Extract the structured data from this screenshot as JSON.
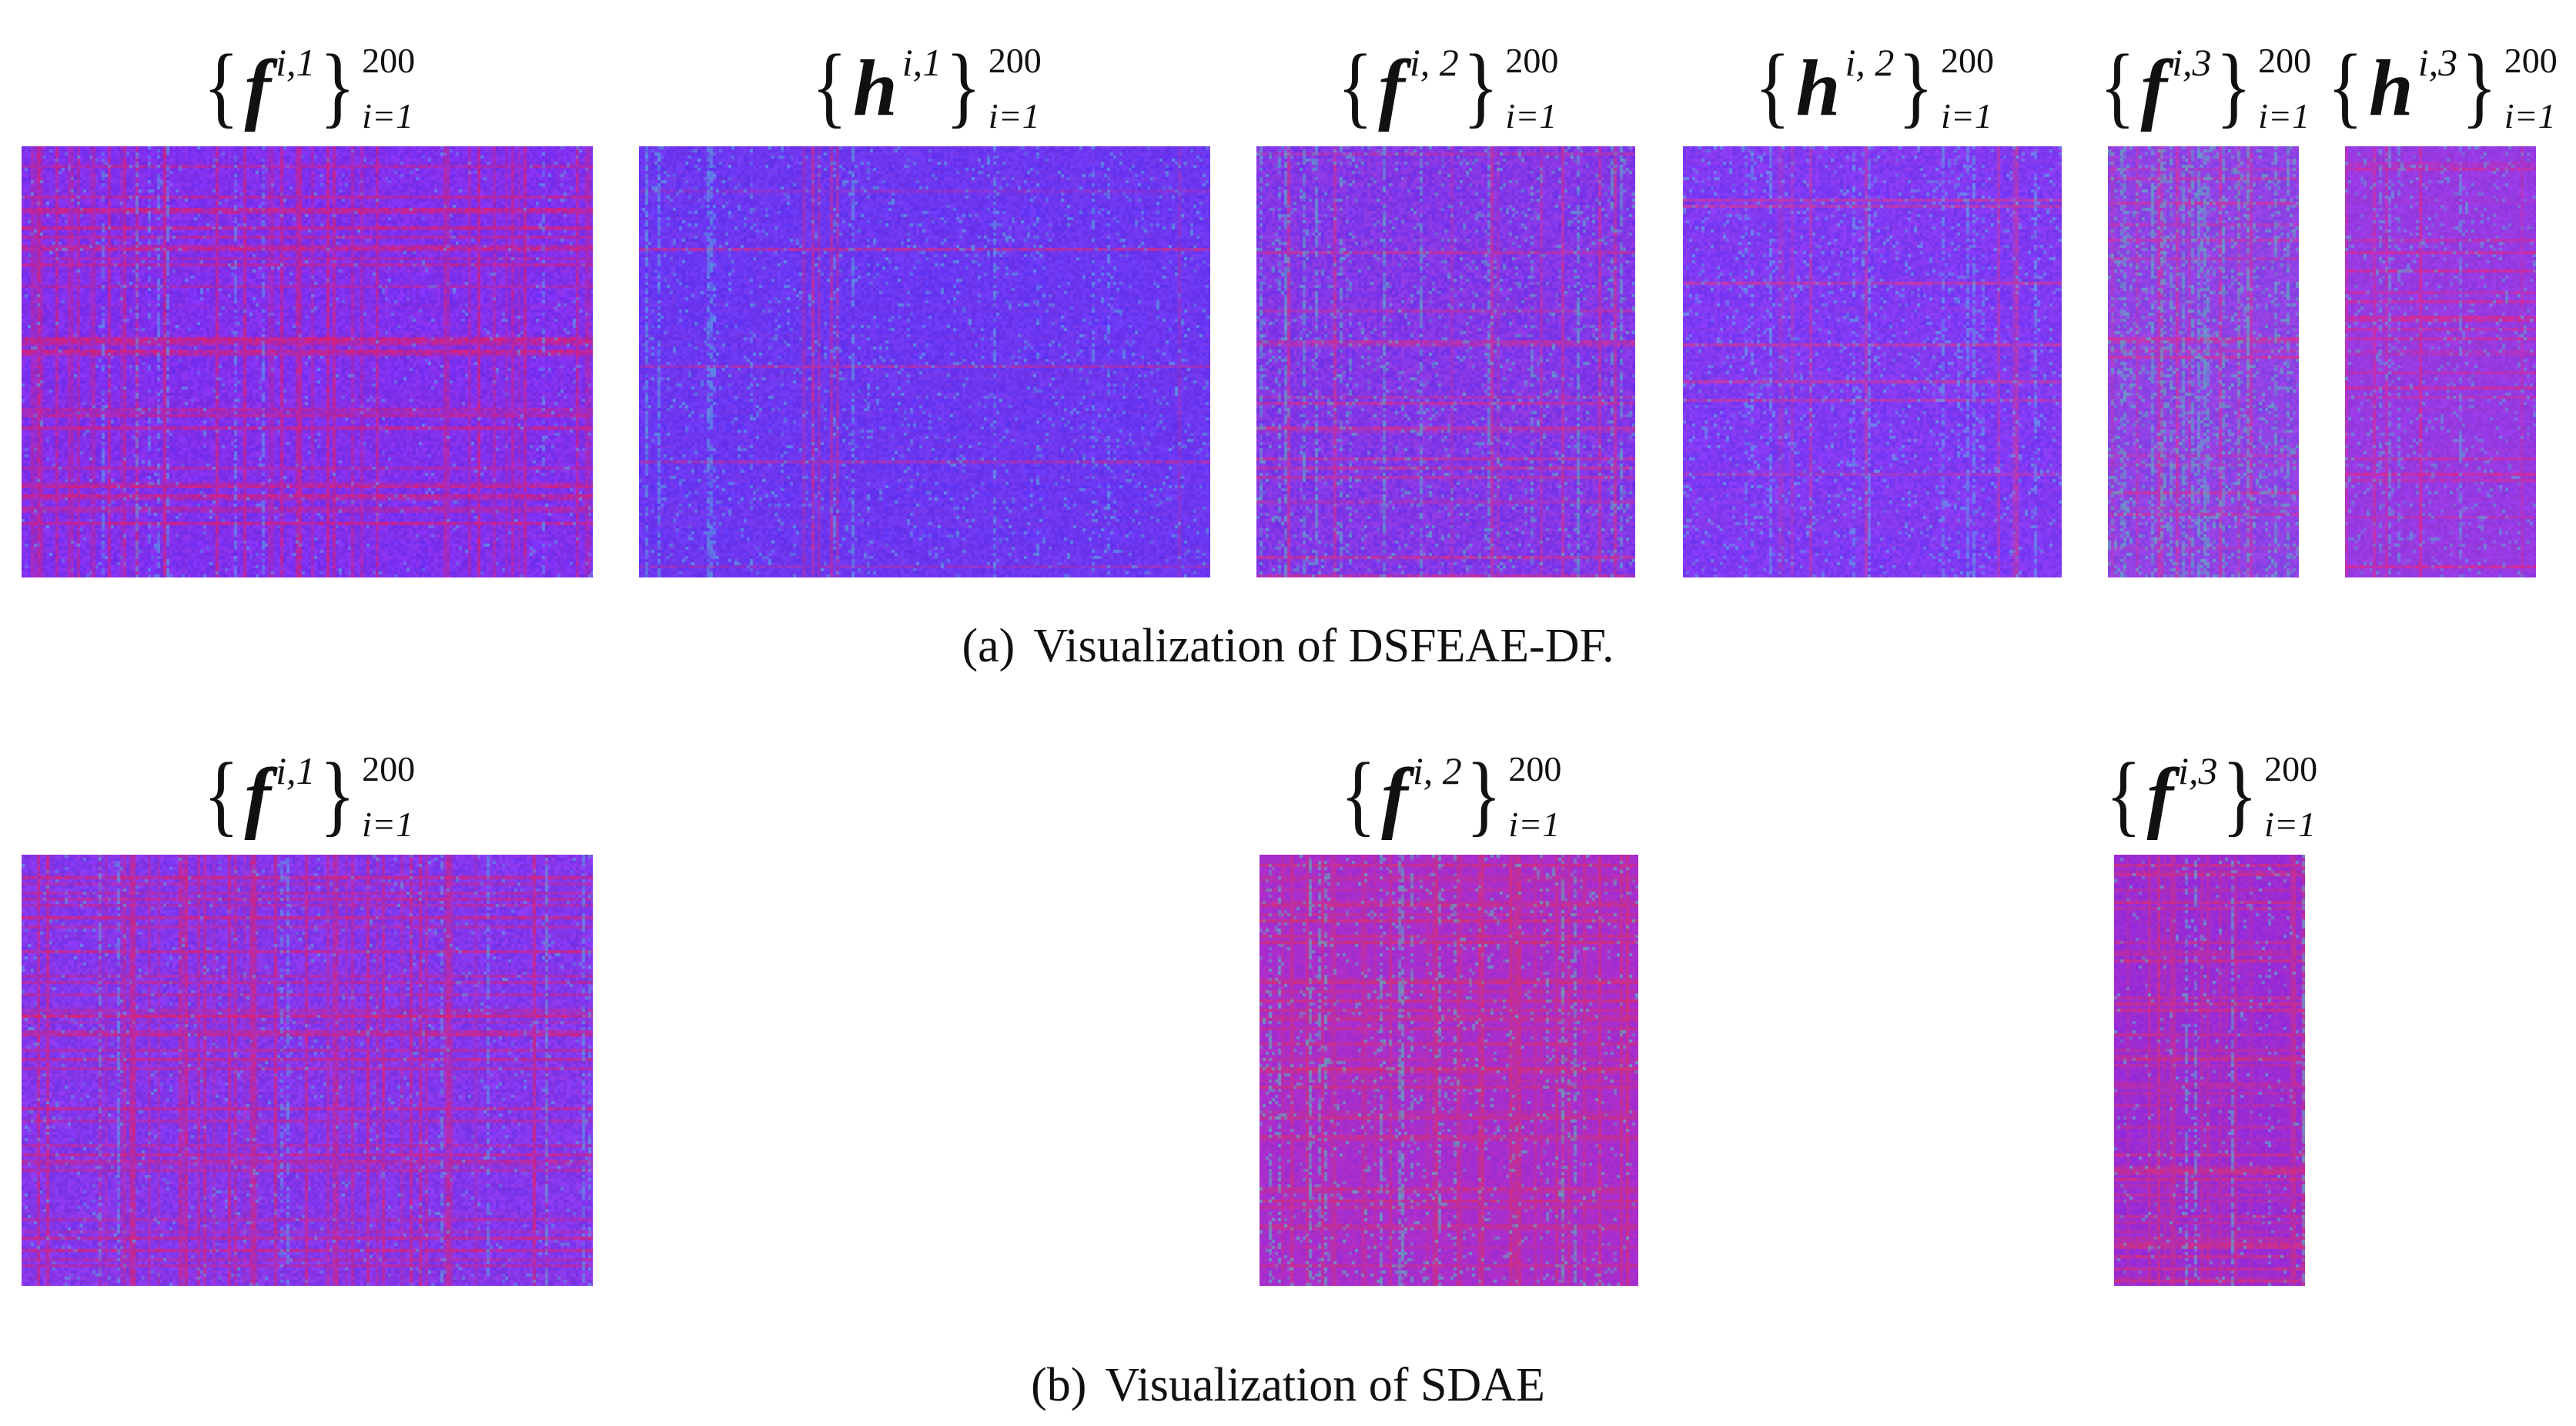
{
  "panel_a": {
    "caption_tag": "(a)",
    "caption_text": "Visualization of DSFEAE-DF.",
    "figures": [
      {
        "var": "f",
        "sup": "i,1",
        "upper": "200",
        "lower": "i=1",
        "colors": {
          "base": "#6a2cf0",
          "alt": "#8a38ff",
          "stripe": "#e0206e",
          "light": "#5aa0e8"
        },
        "stripe_density": 0.2,
        "light_density": 0.05
      },
      {
        "var": "h",
        "sup": "i,1",
        "upper": "200",
        "lower": "i=1",
        "colors": {
          "base": "#5a30f2",
          "alt": "#7040ff",
          "stripe": "#d02c8c",
          "light": "#58a8e0"
        },
        "stripe_density": 0.04,
        "light_density": 0.1
      },
      {
        "var": "f",
        "sup": "i, 2",
        "upper": "200",
        "lower": "i=1",
        "colors": {
          "base": "#6a30ee",
          "alt": "#9040f0",
          "stripe": "#d8308a",
          "light": "#58b0c8"
        },
        "stripe_density": 0.1,
        "light_density": 0.12
      },
      {
        "var": "h",
        "sup": "i, 2",
        "upper": "200",
        "lower": "i=1",
        "colors": {
          "base": "#6a34f4",
          "alt": "#8c40ff",
          "stripe": "#d03a9a",
          "light": "#60a8e6"
        },
        "stripe_density": 0.06,
        "light_density": 0.12
      },
      {
        "var": "f",
        "sup": "i,3",
        "upper": "200",
        "lower": "i=1",
        "colors": {
          "base": "#7a40e8",
          "alt": "#9c48f0",
          "stripe": "#d8309a",
          "light": "#5cb4c0"
        },
        "stripe_density": 0.14,
        "light_density": 0.22
      },
      {
        "var": "h",
        "sup": "i,3",
        "upper": "200",
        "lower": "i=1",
        "colors": {
          "base": "#8a38e0",
          "alt": "#9a40f4",
          "stripe": "#e0288a",
          "light": "#60a0d8"
        },
        "stripe_density": 0.22,
        "light_density": 0.12
      }
    ]
  },
  "panel_b": {
    "caption_tag": "(b)",
    "caption_text": "Visualization of SDAE",
    "figures": [
      {
        "var": "f",
        "sup": "i,1",
        "upper": "200",
        "lower": "i=1",
        "colors": {
          "base": "#6e32ee",
          "alt": "#8e40ff",
          "stripe": "#e0226e",
          "light": "#5aa0e0"
        },
        "stripe_density": 0.24,
        "light_density": 0.06
      },
      {
        "var": "f",
        "sup": "i, 2",
        "upper": "200",
        "lower": "i=1",
        "colors": {
          "base": "#9a2cd8",
          "alt": "#b030d0",
          "stripe": "#d83070",
          "light": "#58b8c0"
        },
        "stripe_density": 0.3,
        "light_density": 0.1
      },
      {
        "var": "f",
        "sup": "i,3",
        "upper": "200",
        "lower": "i=1",
        "colors": {
          "base": "#8c28e0",
          "alt": "#a030d8",
          "stripe": "#d83078",
          "light": "#5ab0d0"
        },
        "stripe_density": 0.34,
        "light_density": 0.06
      }
    ]
  }
}
